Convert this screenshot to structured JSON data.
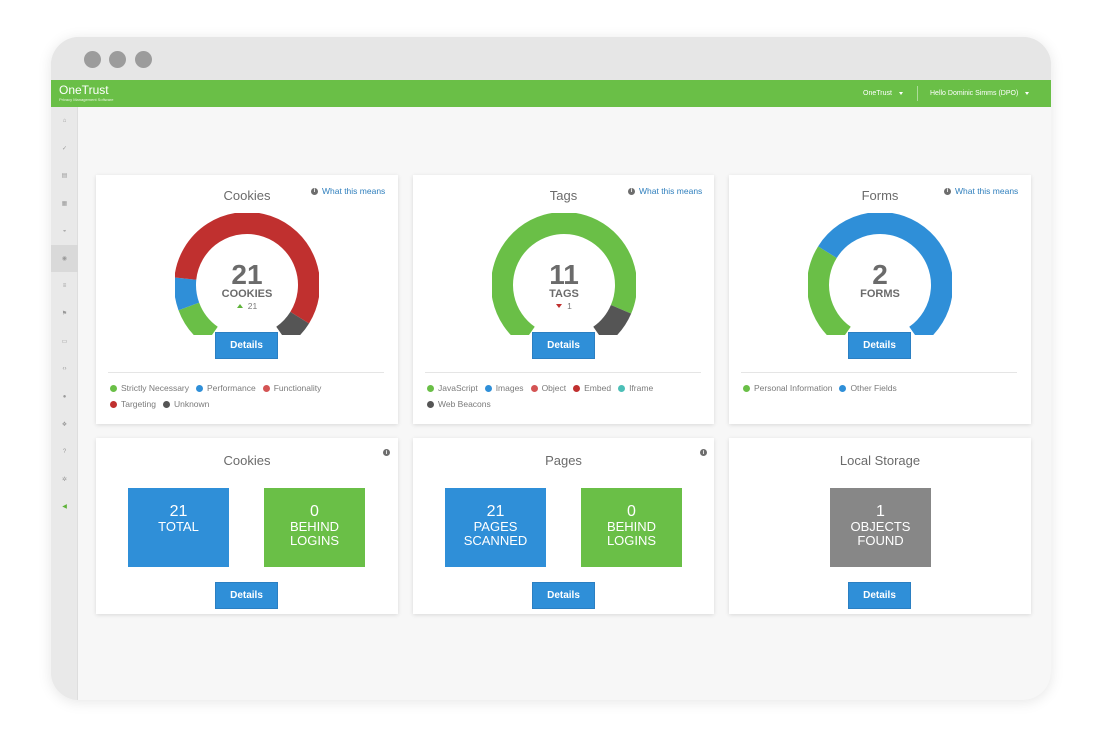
{
  "topbar": {
    "brand": "OneTrust",
    "brand_sub": "Privacy Management Software",
    "org_menu": "OneTrust",
    "user_menu": "Hello Dominic Simms (DPO)"
  },
  "sidebar": {
    "icons": [
      "home-icon",
      "check-icon",
      "document-icon",
      "grid-icon",
      "dashboard-icon",
      "globe-icon",
      "list-icon",
      "flag-icon",
      "folder-icon",
      "code-icon",
      "user-icon",
      "group-icon",
      "help-icon",
      "gear-icon",
      "megaphone-icon"
    ],
    "active_index": 5,
    "highlight_index": 14
  },
  "colors": {
    "green": "#6abf47",
    "blue": "#2f8fd8",
    "red": "#c0302f",
    "light_red": "#d45454",
    "teal": "#4cbfb7",
    "dark_gray": "#555555",
    "gray": "#878787"
  },
  "what_this_means": "What this means",
  "details_label": "Details",
  "cookies_card": {
    "title": "Cookies",
    "value": "21",
    "caption": "COOKIES",
    "delta": "21",
    "delta_dir": "up",
    "gauge_segments": [
      {
        "name": "Strictly Necessary",
        "fraction": 0.12,
        "color": "#6abf47"
      },
      {
        "name": "Performance",
        "fraction": 0.09,
        "color": "#2f8fd8"
      },
      {
        "name": "Targeting",
        "fraction": 0.71,
        "color": "#c0302f"
      },
      {
        "name": "Unknown",
        "fraction": 0.08,
        "color": "#555555"
      }
    ],
    "legend": [
      [
        {
          "label": "Strictly Necessary",
          "color": "#6abf47"
        },
        {
          "label": "Performance",
          "color": "#2f8fd8"
        },
        {
          "label": "Functionality",
          "color": "#d45454"
        }
      ],
      [
        {
          "label": "Targeting",
          "color": "#c0302f"
        },
        {
          "label": "Unknown",
          "color": "#555555"
        }
      ]
    ]
  },
  "tags_card": {
    "title": "Tags",
    "value": "11",
    "caption": "TAGS",
    "delta": "1",
    "delta_dir": "down",
    "gauge_segments": [
      {
        "name": "JavaScript",
        "fraction": 0.89,
        "color": "#6abf47"
      },
      {
        "name": "Web Beacons",
        "fraction": 0.11,
        "color": "#555555"
      }
    ],
    "legend": [
      [
        {
          "label": "JavaScript",
          "color": "#6abf47"
        },
        {
          "label": "Images",
          "color": "#2f8fd8"
        },
        {
          "label": "Object",
          "color": "#d45454"
        },
        {
          "label": "Embed",
          "color": "#c0302f"
        },
        {
          "label": "Iframe",
          "color": "#4cbfb7"
        }
      ],
      [
        {
          "label": "Web Beacons",
          "color": "#555555"
        }
      ]
    ]
  },
  "forms_card": {
    "title": "Forms",
    "value": "2",
    "caption": "FORMS",
    "gauge_segments": [
      {
        "name": "Personal Information",
        "fraction": 0.3,
        "color": "#6abf47"
      },
      {
        "name": "Other Fields",
        "fraction": 0.7,
        "color": "#2f8fd8"
      }
    ],
    "legend": [
      [
        {
          "label": "Personal Information",
          "color": "#6abf47"
        },
        {
          "label": "Other Fields",
          "color": "#2f8fd8"
        }
      ]
    ]
  },
  "cookies_stats": {
    "title": "Cookies",
    "total_value": "21",
    "total_label": "TOTAL",
    "behind_value": "0",
    "behind_label1": "BEHIND",
    "behind_label2": "LOGINS"
  },
  "pages_stats": {
    "title": "Pages",
    "scanned_value": "21",
    "scanned_label1": "PAGES",
    "scanned_label2": "SCANNED",
    "behind_value": "0",
    "behind_label1": "BEHIND",
    "behind_label2": "LOGINS"
  },
  "storage_stats": {
    "title": "Local Storage",
    "objects_value": "1",
    "objects_label1": "OBJECTS",
    "objects_label2": "FOUND"
  }
}
